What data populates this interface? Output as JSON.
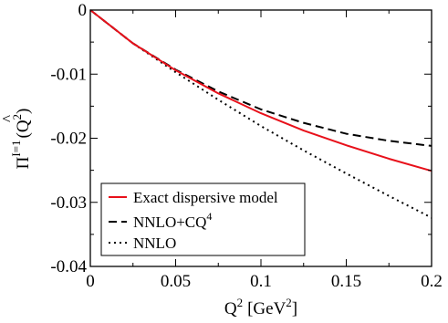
{
  "chart_data": {
    "type": "line",
    "title": "",
    "xlabel": "Q",
    "xlabel_sup": "2",
    "xlabel_unit": "[GeV",
    "xlabel_unit_sup": "2",
    "xlabel_close": "]",
    "ylabel": "Π",
    "ylabel_hat": "^",
    "ylabel_sup": "I=1",
    "ylabel_arg": "(Q",
    "ylabel_arg_sup": "2",
    "ylabel_close": ")",
    "xlim": [
      0,
      0.2
    ],
    "ylim": [
      -0.04,
      0
    ],
    "x_ticks": [
      0,
      0.05,
      0.1,
      0.15,
      0.2
    ],
    "x_tick_labels": [
      "0",
      "0.05",
      "0.1",
      "0.15",
      "0.2"
    ],
    "y_ticks": [
      0,
      -0.01,
      -0.02,
      -0.03,
      -0.04
    ],
    "y_tick_labels": [
      "0",
      "-0.01",
      "-0.02",
      "-0.03",
      "-0.04"
    ],
    "grid": false,
    "legend_position": "bottom-left",
    "x": [
      0,
      0.025,
      0.05,
      0.075,
      0.1,
      0.125,
      0.15,
      0.175,
      0.2
    ],
    "series": [
      {
        "name": "Exact dispersive model",
        "name_sup": "",
        "color": "#e8101a",
        "dash": "solid",
        "values": [
          0,
          -0.0052,
          -0.0094,
          -0.013,
          -0.0161,
          -0.0188,
          -0.0211,
          -0.0232,
          -0.0251
        ]
      },
      {
        "name": "NNLO+CQ",
        "name_sup": "4",
        "color": "#000000",
        "dash": "dashed",
        "values": [
          0,
          -0.0052,
          -0.0093,
          -0.0127,
          -0.0155,
          -0.0176,
          -0.0193,
          -0.0204,
          -0.0212
        ]
      },
      {
        "name": "NNLO",
        "name_sup": "",
        "color": "#000000",
        "dash": "dotted",
        "values": [
          0,
          -0.0052,
          -0.0097,
          -0.014,
          -0.0181,
          -0.0219,
          -0.0255,
          -0.029,
          -0.0324
        ]
      }
    ]
  }
}
